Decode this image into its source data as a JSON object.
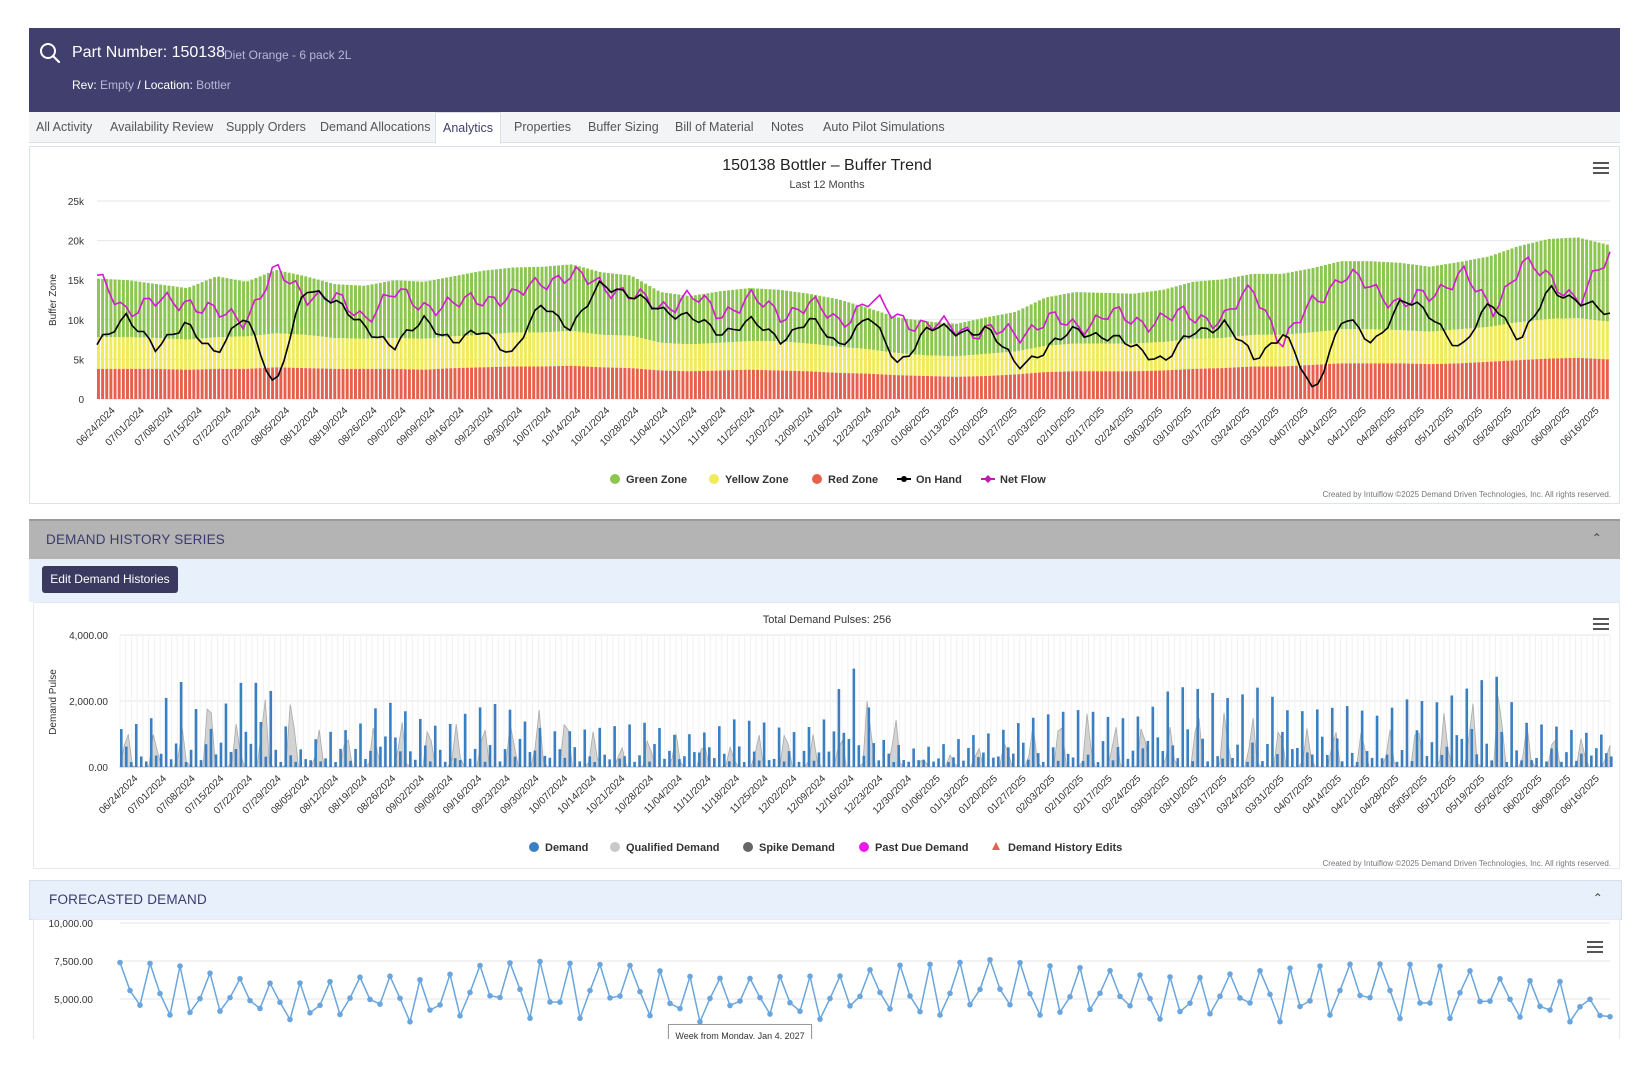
{
  "header": {
    "part_title": "Part Number: 150138",
    "part_desc": "Diet Orange - 6 pack 2L",
    "rev_label": "Rev:",
    "rev_value": "Empty",
    "separator": "/",
    "location_label": "Location:",
    "location_value": "Bottler"
  },
  "tabs": [
    "All Activity",
    "Availability Review",
    "Supply Orders",
    "Demand Allocations",
    "Analytics",
    "Properties",
    "Buffer Sizing",
    "Bill of Material",
    "Notes",
    "Auto Pilot Simulations"
  ],
  "active_tab": "Analytics",
  "buffer_chart": {
    "title": "150138 Bottler – Buffer Trend",
    "subtitle": "Last 12 Months",
    "ylabel": "Buffer Zone",
    "yticks": [
      "25k",
      "20k",
      "15k",
      "10k",
      "5k",
      "0"
    ],
    "legend": [
      "Green Zone",
      "Yellow Zone",
      "Red Zone",
      "On Hand",
      "Net Flow"
    ],
    "credit": "Created by Intuiflow ©2025 Demand Driven Technologies, Inc. All rights reserved."
  },
  "demand_section": {
    "title": "DEMAND HISTORY SERIES",
    "button": "Edit Demand Histories"
  },
  "demand_chart": {
    "title": "Total Demand Pulses: 256",
    "ylabel": "Demand Pulse",
    "yticks": [
      "4,000.00",
      "2,000.00",
      "0.00"
    ],
    "legend": [
      "Demand",
      "Qualified Demand",
      "Spike Demand",
      "Past Due Demand",
      "Demand History Edits"
    ],
    "credit": "Created by Intuiflow ©2025 Demand Driven Technologies, Inc. All rights reserved."
  },
  "forecast_section": {
    "title": "FORECASTED DEMAND",
    "yticks": [
      "10,000.00",
      "7,500.00",
      "5,000.00"
    ],
    "tooltip": "Week from Monday, Jan 4, 2027"
  },
  "x_dates": [
    "06/24/2024",
    "07/01/2024",
    "07/08/2024",
    "07/15/2024",
    "07/22/2024",
    "07/29/2024",
    "08/05/2024",
    "08/12/2024",
    "08/19/2024",
    "08/26/2024",
    "09/02/2024",
    "09/09/2024",
    "09/16/2024",
    "09/23/2024",
    "09/30/2024",
    "10/07/2024",
    "10/14/2024",
    "10/21/2024",
    "10/28/2024",
    "11/04/2024",
    "11/11/2024",
    "11/18/2024",
    "11/25/2024",
    "12/02/2024",
    "12/09/2024",
    "12/16/2024",
    "12/23/2024",
    "12/30/2024",
    "01/06/2025",
    "01/13/2025",
    "01/20/2025",
    "01/27/2025",
    "02/03/2025",
    "02/10/2025",
    "02/17/2025",
    "02/24/2025",
    "03/03/2025",
    "03/10/2025",
    "03/17/2025",
    "03/24/2025",
    "03/31/2025",
    "04/07/2025",
    "04/14/2025",
    "04/21/2025",
    "04/28/2025",
    "05/05/2025",
    "05/12/2025",
    "05/19/2025",
    "05/26/2025",
    "06/02/2025",
    "06/09/2025",
    "06/16/2025"
  ],
  "chart_data": [
    {
      "type": "bar",
      "title": "150138 Bottler – Buffer Trend",
      "ylabel": "Buffer Zone",
      "ylim": [
        0,
        25000
      ],
      "weekly_zone_tops": {
        "green_top": [
          15200,
          15000,
          14500,
          14000,
          15500,
          14800,
          16300,
          15500,
          14500,
          14300,
          15000,
          14800,
          15500,
          16200,
          16600,
          16700,
          17000,
          16000,
          15600,
          13500,
          13000,
          13600,
          14000,
          13800,
          13300,
          12600,
          11500,
          10300,
          9800,
          9500,
          10300,
          11000,
          12800,
          13500,
          13400,
          13300,
          13800,
          14800,
          15100,
          15800,
          15800,
          16500,
          17400,
          17400,
          17200,
          16700,
          17300,
          18000,
          19300,
          20200,
          20400,
          19500
        ],
        "yellow_top": [
          7800,
          7800,
          7700,
          7500,
          7800,
          7900,
          8300,
          8100,
          7700,
          7600,
          7700,
          7600,
          7900,
          8100,
          8400,
          8400,
          8600,
          8100,
          8000,
          7100,
          6900,
          7100,
          7300,
          7300,
          7000,
          6600,
          6300,
          5800,
          5500,
          5400,
          5700,
          6000,
          6700,
          7000,
          7000,
          7000,
          7200,
          7600,
          7700,
          8100,
          8100,
          8400,
          8800,
          8800,
          8700,
          8500,
          8800,
          9100,
          9700,
          10100,
          10200,
          9800
        ],
        "red_top": [
          3800,
          3800,
          3800,
          3700,
          3800,
          3800,
          4000,
          3900,
          3800,
          3800,
          3800,
          3700,
          3900,
          4000,
          4100,
          4100,
          4200,
          4000,
          3900,
          3600,
          3500,
          3600,
          3700,
          3600,
          3500,
          3300,
          3200,
          3000,
          2900,
          2800,
          2900,
          3100,
          3400,
          3500,
          3500,
          3500,
          3600,
          3800,
          3900,
          4100,
          4100,
          4300,
          4500,
          4500,
          4500,
          4400,
          4500,
          4700,
          4900,
          5100,
          5200,
          5000
        ]
      },
      "on_hand_weekly": [
        6500,
        10800,
        6000,
        10000,
        5200,
        11200,
        800,
        14500,
        12000,
        9500,
        6200,
        10500,
        6800,
        9000,
        5200,
        12500,
        8500,
        15000,
        12800,
        11500,
        10200,
        8400,
        9800,
        7500,
        10000,
        6800,
        10500,
        4400,
        8900,
        8500,
        8800,
        4300,
        6200,
        8900,
        7800,
        6600,
        4800,
        8600,
        9500,
        5100,
        8500,
        600,
        10600,
        6700,
        12800,
        10200,
        6400,
        12200,
        7600,
        13800,
        12500,
        10400
      ],
      "net_flow_weekly": [
        15000,
        11500,
        12000,
        12600,
        10600,
        10300,
        16000,
        13500,
        12400,
        10500,
        13200,
        12000,
        11600,
        13000,
        12500,
        15200,
        15300,
        14800,
        12800,
        11800,
        12800,
        10900,
        12600,
        10800,
        11900,
        9800,
        12300,
        10500,
        9100,
        9000,
        8500,
        8100,
        10100,
        9000,
        10800,
        9600,
        10400,
        10300,
        10300,
        13800,
        7000,
        12200,
        15800,
        13800,
        12200,
        12800,
        16500,
        10600,
        17600,
        14700,
        12900,
        17800
      ]
    },
    {
      "type": "bar",
      "title": "Total Demand Pulses: 256",
      "ylabel": "Demand Pulse",
      "ylim": [
        0,
        4000
      ],
      "series": [
        {
          "name": "Demand",
          "weekly_peaks": [
            1000,
            1300,
            2500,
            900,
            2400,
            2400,
            300,
            900,
            1000,
            1900,
            1400,
            1000,
            1600,
            1800,
            1100,
            900,
            1000,
            1100,
            1200,
            800,
            900,
            1300,
            1200,
            900,
            1200,
            3000,
            700,
            400,
            500,
            800,
            900,
            1300,
            1500,
            1600,
            1300,
            1400,
            2300,
            2200,
            1900,
            2300,
            1500,
            1600,
            1700,
            1400,
            1900,
            1800,
            2200,
            2700,
            1200,
            1100,
            900,
            800
          ]
        },
        {
          "name": "Qualified Demand",
          "weekly_peaks": [
            1200,
            1100,
            1000,
            2500,
            1300,
            2300,
            2200,
            900,
            1100,
            1300,
            1500,
            1200,
            1400,
            1300,
            1700,
            1900,
            1200,
            600,
            900,
            1000,
            800,
            600,
            1100,
            1200,
            900,
            1000,
            3000,
            300,
            200,
            600,
            700,
            1200,
            1600,
            1700,
            1300,
            1400,
            1200,
            1900,
            1700,
            1500,
            1300,
            1100,
            1300,
            1000,
            1300,
            1600,
            1800,
            2800,
            1300,
            1100,
            900,
            700
          ]
        }
      ]
    },
    {
      "type": "line",
      "title": "FORECASTED DEMAND",
      "ylim": [
        0,
        10000
      ],
      "visible_peaks": [
        7400,
        7300,
        6500,
        6000,
        6100,
        6600,
        6200,
        7200,
        7500,
        7300,
        7200,
        6500,
        6300,
        6500,
        6500,
        7200,
        7300,
        7600,
        7200,
        7000,
        6500,
        6400,
        6800,
        7100,
        7300,
        7300,
        7100,
        6200,
        6200,
        4200
      ]
    }
  ]
}
